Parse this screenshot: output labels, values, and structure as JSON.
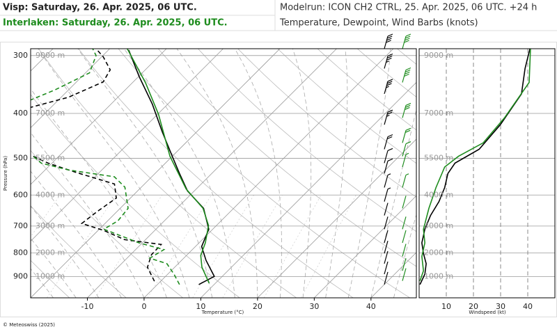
{
  "header": {
    "title_visp": "Visp: Saturday, 26. Apr. 2025, 06 UTC.",
    "title_interlaken": "Interlaken: Saturday, 26. Apr. 2025, 06 UTC.",
    "modelrun": "Modelrun: ICON CH2 CTRL, 25. Apr. 2025, 06 UTC. +24 h",
    "subtitle": "Temperature, Dewpoint, Wind Barbs (knots)"
  },
  "footer": "© Meteoswiss (2025)",
  "chart_data": [
    {
      "type": "skewt",
      "xlabel": "Temperature (°C)",
      "ylabel": "Pressure (hPa)",
      "log_y": true,
      "xlim": [
        -20,
        48
      ],
      "ylim": [
        1000,
        290
      ],
      "xticks": [
        -10,
        0,
        10,
        20,
        30,
        40
      ],
      "yticks": [
        300,
        400,
        500,
        600,
        700,
        800,
        900
      ],
      "height_labels": [
        {
          "value": 300,
          "label": "9000 m"
        },
        {
          "value": 400,
          "label": "7000 m"
        },
        {
          "value": 500,
          "label": "5500 m"
        },
        {
          "value": 600,
          "label": "4000 m"
        },
        {
          "value": 700,
          "label": "3000 m"
        },
        {
          "value": 800,
          "label": "2000 m"
        },
        {
          "value": 900,
          "label": "1000 m"
        }
      ],
      "series": [
        {
          "color": "#000000",
          "dash": false,
          "pressure": [
            936,
            899,
            830,
            775,
            711,
            641,
            588,
            539,
            495,
            439,
            382,
            333,
            292
          ],
          "values": [
            7.3,
            8.6,
            4.3,
            1.1,
            -0.7,
            -5.3,
            -11.2,
            -15.7,
            -20.0,
            -26.0,
            -32.7,
            -39.9,
            -46.4
          ]
        },
        {
          "color": "#1e8c1e",
          "dash": false,
          "pressure": [
            930,
            859,
            810,
            761,
            698,
            641,
            582,
            495,
            402,
            344,
            290
          ],
          "values": [
            8.9,
            4.8,
            2.5,
            1.1,
            -1.4,
            -5.4,
            -11.8,
            -20.4,
            -29.8,
            -37.6,
            -46.9
          ]
        },
        {
          "color": "#000000",
          "dash": true,
          "pressure": [
            921,
            859,
            807,
            767,
            749,
            716,
            691,
            652,
            609,
            568,
            536,
            512,
            495,
            null,
            389,
            369,
            342,
            322,
            302,
            290
          ],
          "values": [
            -1.1,
            -4.8,
            -6.3,
            -6.4,
            -13.7,
            -18.9,
            -24.1,
            -23.5,
            -22.5,
            -25.3,
            -34.2,
            -40.7,
            -44.5,
            null,
            -53.8,
            -48.7,
            -45.3,
            -46.2,
            -49.7,
            -52.4
          ]
        },
        {
          "color": "#1e8c1e",
          "dash": true,
          "pressure": [
            936,
            889,
            844,
            821,
            787,
            761,
            711,
            682,
            641,
            577,
            548,
            530,
            512,
            495,
            null,
            375,
            356,
            327,
            300,
            290
          ],
          "values": [
            3.9,
            1.1,
            -2.0,
            -6.0,
            -5.0,
            -10.6,
            -19.2,
            -18.2,
            -18.6,
            -22.9,
            -26.6,
            -35.8,
            -41.9,
            -44.5,
            null,
            -55.0,
            -52.4,
            -49.3,
            -51.2,
            -53.0
          ]
        }
      ]
    },
    {
      "type": "line",
      "xlabel": "Windspeed (kt)",
      "log_y": true,
      "xlim": [
        0,
        50
      ],
      "ylim": [
        1000,
        290
      ],
      "xticks": [
        10,
        20,
        30,
        40
      ],
      "series": [
        {
          "color": "#000000",
          "pressure": [
            936,
            889,
            844,
            802,
            761,
            711,
            664,
            620,
            578,
            539,
            512,
            478,
            423,
            363,
            320,
            290
          ],
          "values": [
            0.3,
            2.1,
            2.6,
            1.6,
            1.0,
            2.1,
            4.2,
            7.3,
            9.4,
            10.6,
            13.2,
            22.1,
            29.9,
            37.7,
            39.0,
            40.8
          ]
        },
        {
          "color": "#1e8c1e",
          "pressure": [
            919,
            874,
            814,
            761,
            711,
            641,
            578,
            522,
            495,
            463,
            409,
            343,
            290
          ],
          "values": [
            0.3,
            1.6,
            1.0,
            2.1,
            1.6,
            3.6,
            6.2,
            9.4,
            14.5,
            23.6,
            31.4,
            40.5,
            41.0
          ]
        }
      ]
    }
  ]
}
